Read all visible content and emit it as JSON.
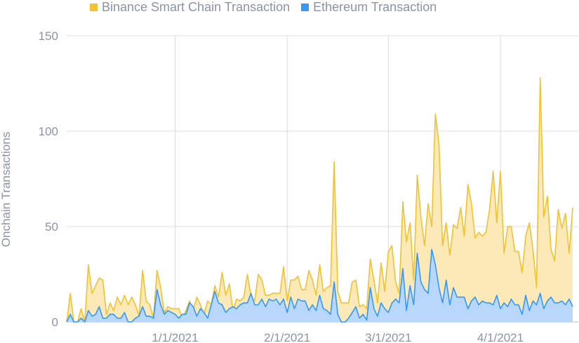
{
  "chart_data": {
    "type": "area",
    "title": "",
    "xlabel": "",
    "ylabel": "Onchain Transactions",
    "ylim": [
      0,
      150
    ],
    "yticks": [
      0,
      50,
      100,
      150
    ],
    "xtick_labels": [
      "1/1/2021",
      "2/1/2021",
      "3/1/2021",
      "4/1/2021"
    ],
    "x_start": "2020-12-02",
    "grid": true,
    "legend_position": "top",
    "stacked": true,
    "series": [
      {
        "name": "Binance Smart Chain Transaction",
        "color": "#f1c232",
        "fill": "#fbe9b7",
        "values": [
          0,
          15,
          0,
          0,
          7,
          0,
          30,
          15,
          19,
          23,
          22,
          4,
          10,
          6,
          13,
          9,
          14,
          9,
          13,
          9,
          3,
          27,
          11,
          9,
          2,
          27,
          18,
          5,
          8,
          7,
          7,
          7,
          2,
          6,
          11,
          6,
          13,
          9,
          4,
          11,
          9,
          19,
          13,
          26,
          14,
          20,
          6,
          12,
          11,
          13,
          25,
          13,
          11,
          25,
          22,
          14,
          14,
          15,
          15,
          15,
          29,
          11,
          22,
          22,
          24,
          17,
          17,
          27,
          22,
          14,
          30,
          16,
          18,
          19,
          84,
          16,
          10,
          10,
          10,
          21,
          22,
          8,
          9,
          7,
          33,
          22,
          10,
          31,
          16,
          37,
          40,
          21,
          15,
          63,
          42,
          52,
          22,
          77,
          55,
          40,
          62,
          50,
          109,
          93,
          40,
          52,
          35,
          51,
          49,
          60,
          45,
          72,
          62,
          44,
          47,
          45,
          47,
          59,
          79,
          52,
          79,
          36,
          50,
          50,
          37,
          37,
          26,
          45,
          52,
          38,
          18,
          128,
          55,
          66,
          38,
          32,
          59,
          49,
          57,
          36,
          60
        ]
      },
      {
        "name": "Ethereum Transaction",
        "color": "#3399ff",
        "fill": "#b8d7fb",
        "values": [
          0,
          4,
          0,
          0,
          2,
          0,
          6,
          3,
          4,
          8,
          2,
          2,
          4,
          4,
          2,
          2,
          5,
          0,
          0,
          2,
          3,
          8,
          3,
          3,
          2,
          17,
          9,
          4,
          6,
          5,
          4,
          2,
          4,
          4,
          10,
          8,
          3,
          7,
          5,
          2,
          9,
          16,
          10,
          9,
          5,
          7,
          8,
          7,
          9,
          10,
          10,
          15,
          9,
          9,
          12,
          8,
          12,
          11,
          12,
          9,
          12,
          5,
          13,
          7,
          12,
          11,
          11,
          6,
          9,
          6,
          14,
          7,
          6,
          4,
          21,
          4,
          0,
          0,
          2,
          5,
          8,
          2,
          4,
          1,
          18,
          7,
          3,
          10,
          7,
          5,
          10,
          12,
          10,
          28,
          6,
          19,
          9,
          36,
          21,
          17,
          15,
          38,
          30,
          18,
          10,
          22,
          9,
          18,
          13,
          13,
          13,
          7,
          11,
          13,
          9,
          11,
          10,
          10,
          9,
          14,
          7,
          10,
          8,
          12,
          9,
          9,
          4,
          14,
          6,
          11,
          9,
          15,
          7,
          11,
          13,
          10,
          10,
          11,
          9,
          12,
          8
        ]
      }
    ]
  }
}
